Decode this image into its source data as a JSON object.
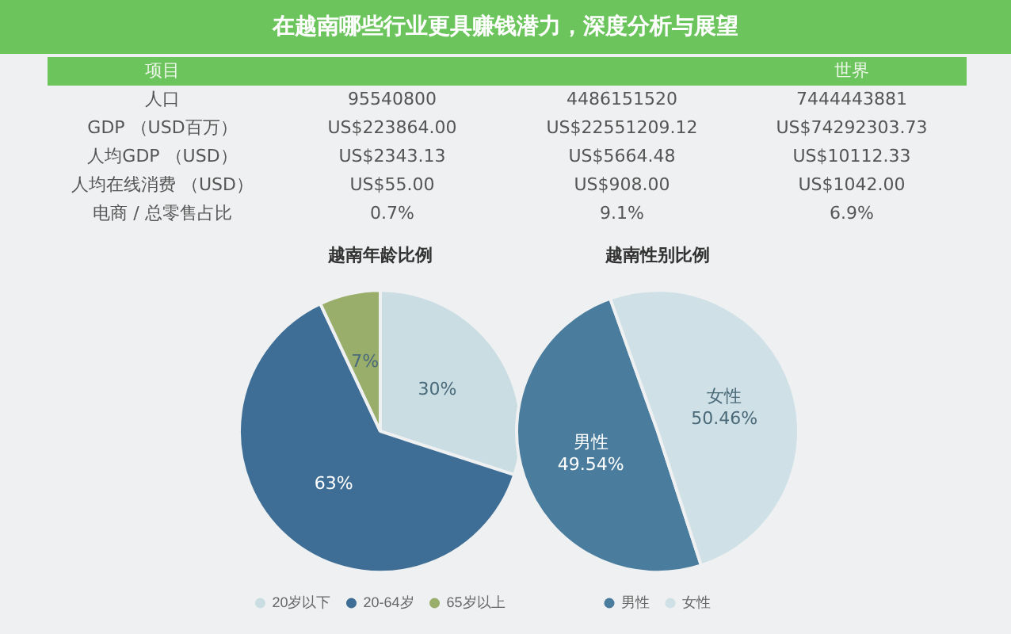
{
  "chart_data": [
    {
      "type": "other",
      "title": "在越南哪些行业更具赚钱潜力，深度分析与展望",
      "annotations": [
        "项目",
        "世界",
        "人口",
        "95540800",
        "4486151520",
        "7444443881",
        "GDP （USD百万）",
        "US$223864.00",
        "US$22551209.12",
        "US$74292303.73",
        "人均GDP （USD）",
        "US$2343.13",
        "US$5664.48",
        "US$10112.33",
        "人均在线消费 （USD）",
        "US$55.00",
        "US$908.00",
        "US$1042.00",
        "电商 / 总零售占比",
        "0.7%",
        "9.1%",
        "6.9%"
      ]
    },
    {
      "type": "pie",
      "title": "越南年龄比例",
      "categories": [
        "20岁以下",
        "20-64岁",
        "65岁以上"
      ],
      "values": [
        30,
        63,
        7
      ],
      "colors": [
        "#c9dde3",
        "#3e6e95",
        "#9aae6c"
      ],
      "value_labels": [
        "30%",
        "63%",
        "7%"
      ],
      "legend": "bottom"
    },
    {
      "type": "pie",
      "title": "越南性别比例",
      "categories": [
        "男性",
        "女性"
      ],
      "values": [
        49.54,
        50.46
      ],
      "colors": [
        "#4a7c9d",
        "#cfe0e6"
      ],
      "value_labels": [
        "男性\n49.54%",
        "女性\n50.46%"
      ],
      "legend": "bottom"
    }
  ]
}
